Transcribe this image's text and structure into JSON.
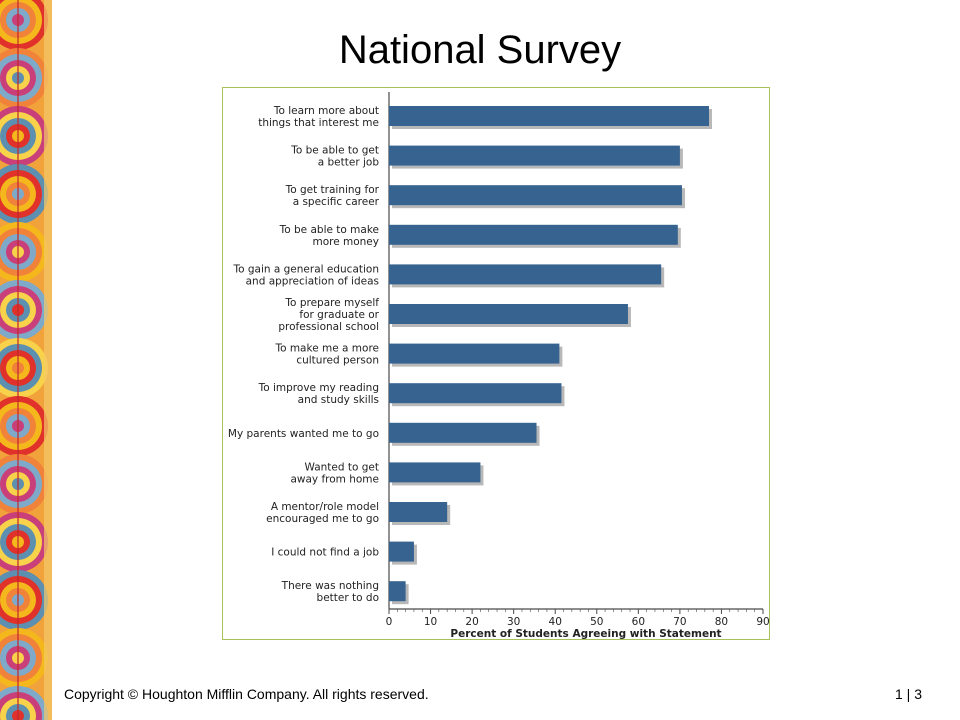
{
  "slide": {
    "title": "National Survey",
    "footer_copyright": "Copyright © Houghton Mifflin Company. All rights reserved.",
    "footer_page": "1 | 3"
  },
  "colors": {
    "bar": "#36638f",
    "bar_shadow": "#b8b8b8",
    "frame_border": "#a8c25a",
    "axis": "#4a4a4a",
    "strip_colors": [
      "#e0322a",
      "#f5b81c",
      "#f0823a",
      "#7fa9c9",
      "#c93f7a",
      "#f7d24a",
      "#5c8fb0"
    ]
  },
  "chart_data": {
    "type": "bar",
    "orientation": "horizontal",
    "title": "",
    "xlabel": "Percent of Students Agreeing with Statement",
    "ylabel": "",
    "xlim": [
      0,
      90
    ],
    "xticks": [
      0,
      10,
      20,
      30,
      40,
      50,
      60,
      70,
      80,
      90
    ],
    "grid": false,
    "categories": [
      [
        "To learn more about",
        "things that interest me"
      ],
      [
        "To be able to get",
        "a better job"
      ],
      [
        "To get training for",
        "a specific career"
      ],
      [
        "To be able to make",
        "more money"
      ],
      [
        "To gain a general education",
        "and appreciation of ideas"
      ],
      [
        "To prepare myself",
        "for graduate or",
        "professional school"
      ],
      [
        "To make me a more",
        "cultured person"
      ],
      [
        "To improve my reading",
        "and study skills"
      ],
      [
        "My parents wanted me to go"
      ],
      [
        "Wanted to get",
        "away from home"
      ],
      [
        "A mentor/role model",
        "encouraged me to go"
      ],
      [
        "I could not find a job"
      ],
      [
        "There was nothing",
        "better to do"
      ]
    ],
    "values": [
      77,
      70,
      70.5,
      69.5,
      65.5,
      57.5,
      41,
      41.5,
      35.5,
      22,
      14,
      6,
      4
    ]
  }
}
